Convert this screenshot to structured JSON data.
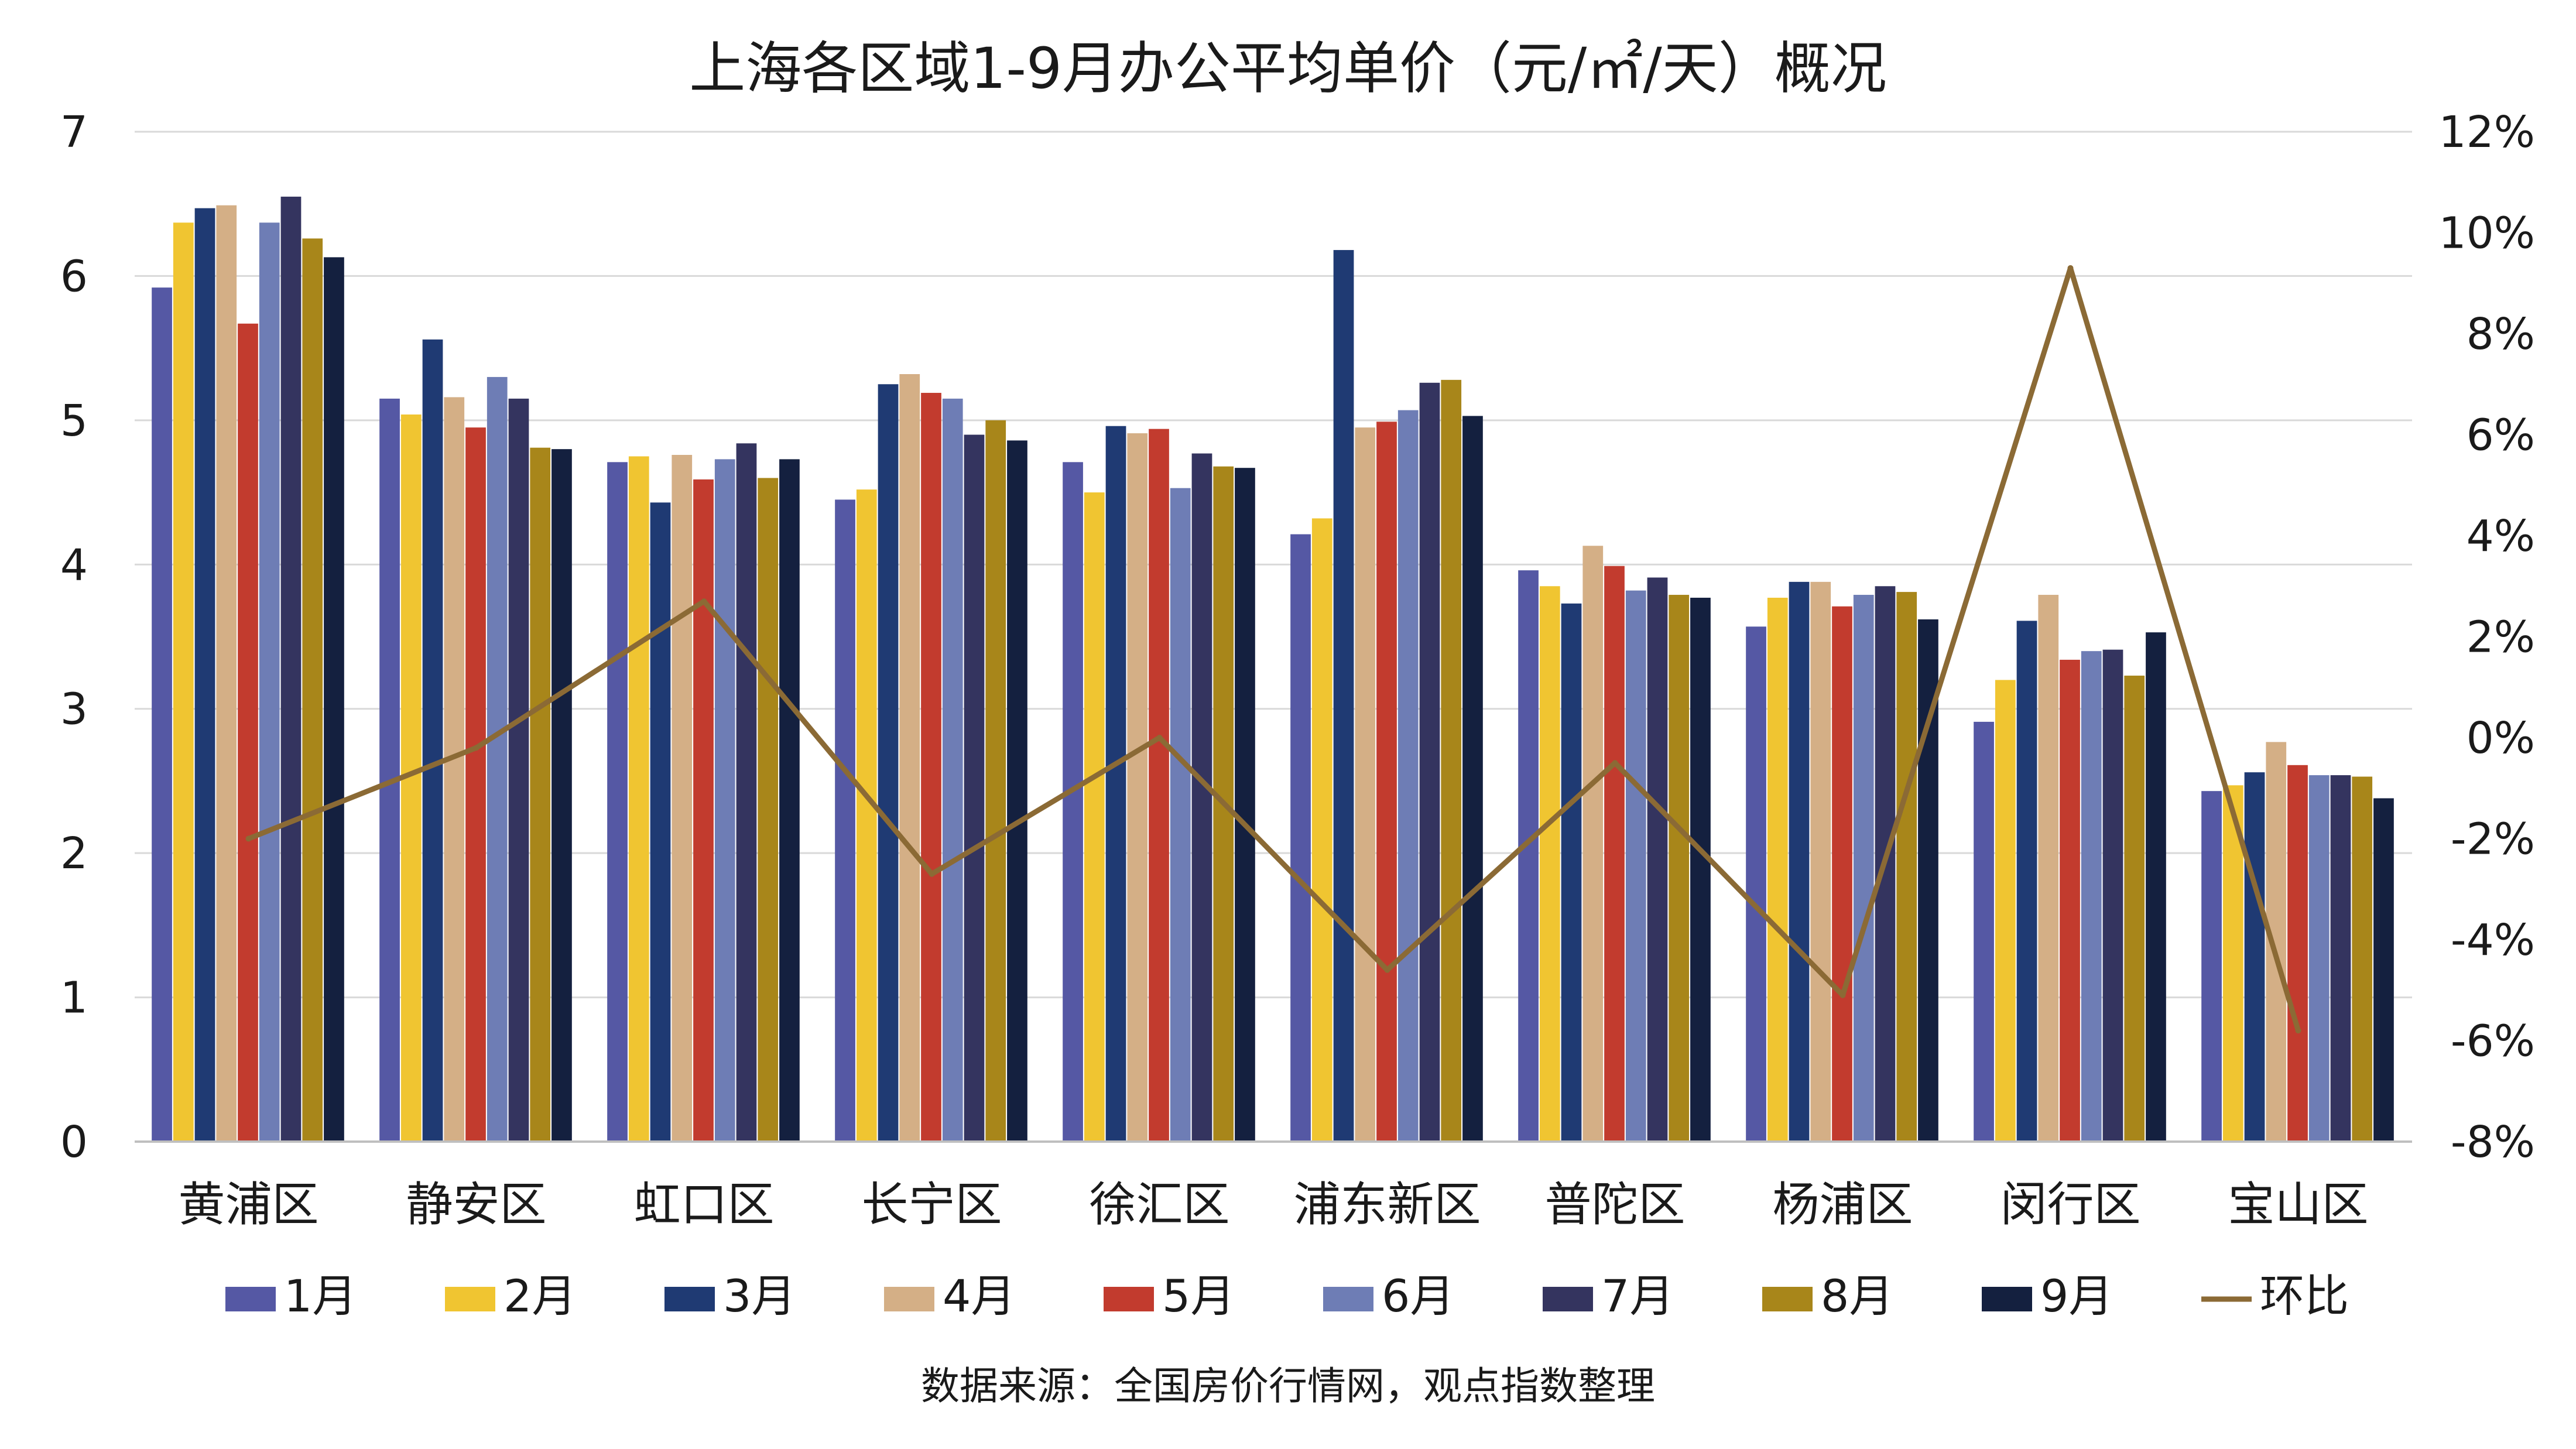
{
  "chart_data": {
    "type": "bar",
    "title": "上海各区域1-9月办公平均单价（元/㎡/天）概况",
    "source": "数据来源：全国房价行情网，观点指数整理",
    "categories": [
      "黄浦区",
      "静安区",
      "虹口区",
      "长宁区",
      "徐汇区",
      "浦东新区",
      "普陀区",
      "杨浦区",
      "闵行区",
      "宝山区"
    ],
    "y_left": {
      "lim": [
        0,
        7
      ],
      "ticks": [
        "0",
        "1",
        "2",
        "3",
        "4",
        "5",
        "6",
        "7"
      ]
    },
    "y_right": {
      "lim": [
        -8,
        12
      ],
      "ticks": [
        "-8%",
        "-6%",
        "-4%",
        "-2%",
        "0%",
        "2%",
        "4%",
        "6%",
        "8%",
        "10%",
        "12%"
      ]
    },
    "grid": true,
    "legend_position": "bottom",
    "series": [
      {
        "name": "1月",
        "color": "#5558A4",
        "values": [
          5.92,
          5.15,
          4.71,
          4.45,
          4.71,
          4.21,
          3.96,
          3.57,
          2.91,
          2.43
        ]
      },
      {
        "name": "2月",
        "color": "#F0C531",
        "values": [
          6.37,
          5.04,
          4.75,
          4.52,
          4.5,
          4.32,
          3.85,
          3.77,
          3.2,
          2.47
        ]
      },
      {
        "name": "3月",
        "color": "#1F3A73",
        "values": [
          6.47,
          5.56,
          4.43,
          5.25,
          4.96,
          6.18,
          3.73,
          3.88,
          3.61,
          2.56
        ]
      },
      {
        "name": "4月",
        "color": "#D4AF86",
        "values": [
          6.49,
          5.16,
          4.76,
          5.32,
          4.91,
          4.95,
          4.13,
          3.88,
          3.79,
          2.77
        ]
      },
      {
        "name": "5月",
        "color": "#C23B2E",
        "values": [
          5.67,
          4.95,
          4.59,
          5.19,
          4.94,
          4.99,
          3.99,
          3.71,
          3.34,
          2.61
        ]
      },
      {
        "name": "6月",
        "color": "#6E7DB5",
        "values": [
          6.37,
          5.3,
          4.73,
          5.15,
          4.53,
          5.07,
          3.82,
          3.79,
          3.4,
          2.54
        ]
      },
      {
        "name": "7月",
        "color": "#34345F",
        "values": [
          6.55,
          5.15,
          4.84,
          4.9,
          4.77,
          5.26,
          3.91,
          3.85,
          3.41,
          2.54
        ]
      },
      {
        "name": "8月",
        "color": "#A8861A",
        "values": [
          6.26,
          4.81,
          4.6,
          5.0,
          4.68,
          5.28,
          3.79,
          3.81,
          3.23,
          2.53
        ]
      },
      {
        "name": "9月",
        "color": "#14203F",
        "values": [
          6.13,
          4.8,
          4.73,
          4.86,
          4.67,
          5.03,
          3.77,
          3.62,
          3.53,
          2.38
        ]
      }
    ],
    "line": {
      "name": "环比",
      "color": "#8B6A35",
      "axis": "right",
      "unit": "%",
      "values": [
        -2.0,
        -0.2,
        2.7,
        -2.7,
        0.0,
        -4.6,
        -0.5,
        -5.1,
        9.3,
        -5.8
      ]
    }
  }
}
